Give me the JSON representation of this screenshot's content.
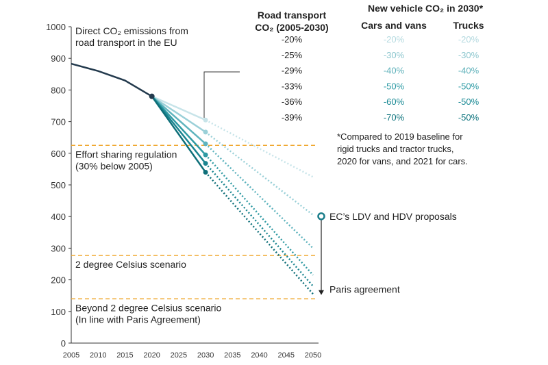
{
  "chart_data": {
    "type": "line",
    "title": "Direct CO₂ emissions from road transport in the EU",
    "title_line1": "Direct CO₂ emissions from",
    "title_line2": "road transport in the EU",
    "xlim": [
      2005,
      2050
    ],
    "ylim": [
      0,
      1000
    ],
    "x_ticks": [
      2005,
      2010,
      2015,
      2020,
      2025,
      2030,
      2035,
      2040,
      2045,
      2050
    ],
    "y_ticks": [
      0,
      100,
      200,
      300,
      400,
      500,
      600,
      700,
      800,
      900,
      1000
    ],
    "grid": false,
    "historical": {
      "x": [
        2005,
        2010,
        2015,
        2020
      ],
      "y": [
        883,
        860,
        830,
        780
      ],
      "color": "#233a4d"
    },
    "series": [
      {
        "x": [
          2020,
          2030,
          2050
        ],
        "y": [
          780,
          705,
          525
        ],
        "color": "#c7e4e9"
      },
      {
        "x": [
          2020,
          2030,
          2050
        ],
        "y": [
          780,
          667,
          405
        ],
        "color": "#9ad0d8"
      },
      {
        "x": [
          2020,
          2030,
          2050
        ],
        "y": [
          780,
          630,
          300
        ],
        "color": "#5fb4be"
      },
      {
        "x": [
          2020,
          2030,
          2050
        ],
        "y": [
          780,
          595,
          215
        ],
        "color": "#2f9aa3"
      },
      {
        "x": [
          2020,
          2030,
          2050
        ],
        "y": [
          780,
          568,
          180
        ],
        "color": "#1a8590"
      },
      {
        "x": [
          2020,
          2030,
          2050
        ],
        "y": [
          780,
          540,
          155
        ],
        "color": "#0e6f79"
      }
    ],
    "reference_lines": [
      {
        "y": 625,
        "label_line1": "Effort sharing regulation",
        "label_line2": "(30% below 2005)"
      },
      {
        "y": 277,
        "label_line1": "2 degree Celsius scenario",
        "label_line2": ""
      },
      {
        "y": 140,
        "label_line1": "Beyond 2 degree Celsius scenario",
        "label_line2": "(In line with Paris Agreement)"
      }
    ],
    "reference_color": "#f0a830",
    "annotations": {
      "ec_label": "EC’s LDV and HDV proposals",
      "ec_y": 390,
      "paris_label": "Paris agreement",
      "paris_y": 150,
      "ec_color": "#1a7d8a"
    },
    "table": {
      "col1_header_line1": "Road transport",
      "col1_header_line2": "CO₂ (2005-2030)",
      "group_header": "New vehicle CO₂ in 2030*",
      "col2_header": "Cars and vans",
      "col3_header": "Trucks",
      "rows": [
        {
          "road": "-20%",
          "cars": "-20%",
          "trucks": "-20%",
          "color": "#b3d9df"
        },
        {
          "road": "-25%",
          "cars": "-30%",
          "trucks": "-30%",
          "color": "#8cc6ce"
        },
        {
          "road": "-29%",
          "cars": "-40%",
          "trucks": "-40%",
          "color": "#5eb1ba"
        },
        {
          "road": "-33%",
          "cars": "-50%",
          "trucks": "-50%",
          "color": "#2c9aa4"
        },
        {
          "road": "-36%",
          "cars": "-60%",
          "trucks": "-50%",
          "color": "#178893"
        },
        {
          "road": "-39%",
          "cars": "-70%",
          "trucks": "-50%",
          "color": "#0b727c"
        }
      ]
    },
    "footnote_lines": [
      "*Compared to 2019 baseline for",
      "rigid trucks and tractor trucks,",
      "2020 for vans, and 2021 for cars."
    ]
  }
}
